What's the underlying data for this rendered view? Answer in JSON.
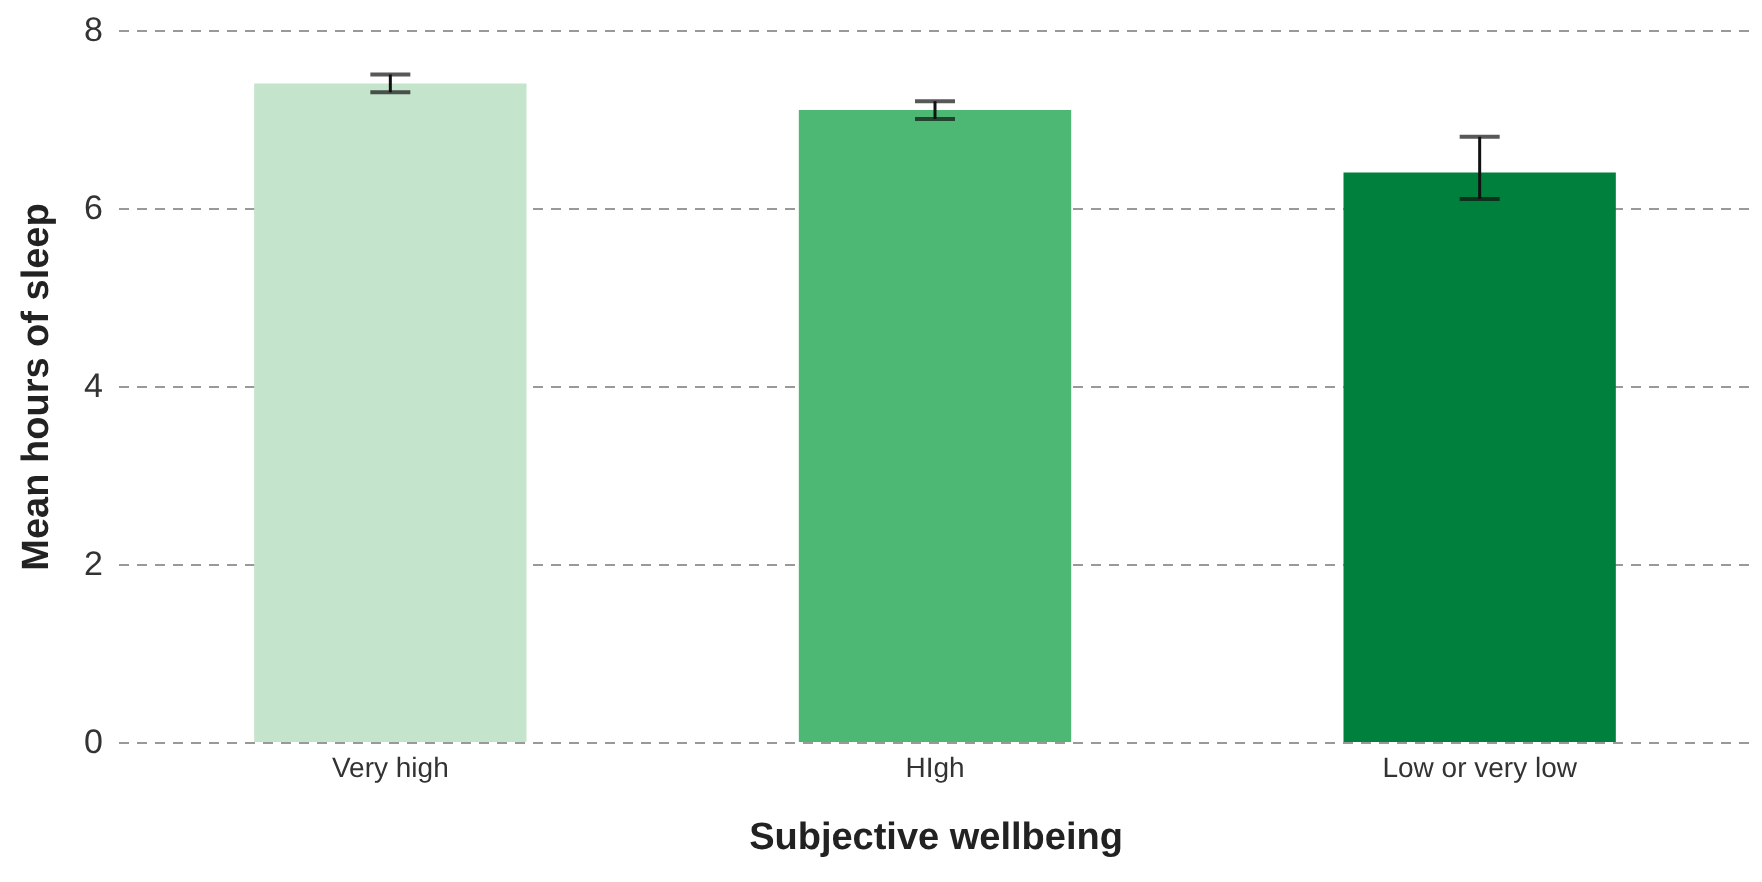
{
  "chart_data": {
    "type": "bar",
    "xlabel": "Subjective wellbeing",
    "ylabel": "Mean hours of sleep",
    "categories": [
      "Very high",
      "HIgh",
      "Low or very low"
    ],
    "values": [
      7.4,
      7.1,
      6.4
    ],
    "colors": [
      "#c5e4cc",
      "#4cb874",
      "#00803d"
    ],
    "errors": [
      [
        7.3,
        7.5
      ],
      [
        7.0,
        7.2
      ],
      [
        6.1,
        6.8
      ]
    ],
    "ylim": [
      0,
      8
    ],
    "yticks": [
      0,
      2,
      4,
      6,
      8
    ],
    "grid": "y"
  }
}
